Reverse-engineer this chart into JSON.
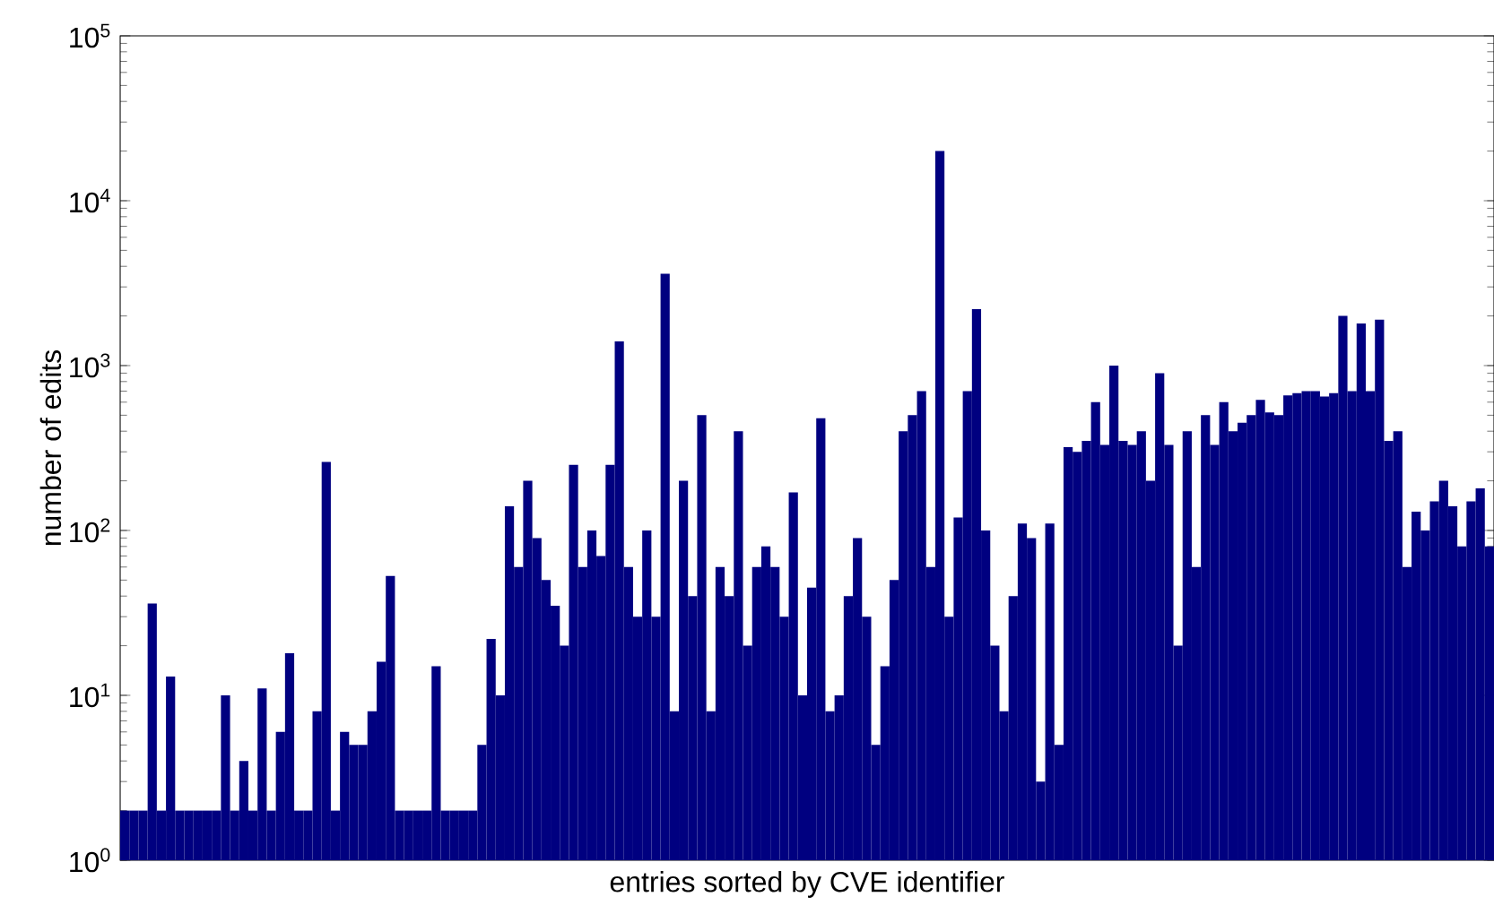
{
  "chart_data": {
    "type": "bar",
    "xlabel": "entries sorted by CVE identifier",
    "ylabel": "number of edits",
    "log": true,
    "grid": false,
    "tick_labels": "y",
    "color": "#000080",
    "ylim": [
      1,
      100000
    ],
    "yticks": [
      {
        "value": 1,
        "label": "10$^{0}$"
      },
      {
        "value": 10,
        "label": "10$^{1}$"
      },
      {
        "value": 100,
        "label": "10$^{2}$"
      },
      {
        "value": 1000,
        "label": "10$^{3}$"
      },
      {
        "value": 10000,
        "label": "10$^{4}$"
      },
      {
        "value": 100000,
        "label": "10$^{5}$"
      }
    ],
    "categories": [
      null,
      null,
      null,
      null,
      null,
      null,
      null,
      null,
      null,
      null,
      null,
      null,
      null,
      null,
      null,
      null,
      null,
      null,
      null,
      null,
      null,
      null,
      null,
      null,
      null,
      null,
      null,
      null,
      null,
      null,
      null,
      null,
      null,
      null,
      null,
      null,
      null,
      null,
      null,
      null,
      null,
      null,
      null,
      null,
      null,
      null,
      null,
      null,
      null,
      null,
      null,
      null,
      null,
      null,
      null,
      null,
      null,
      null,
      null,
      null,
      null,
      null,
      null,
      null,
      null,
      null,
      null,
      null,
      null,
      null,
      null,
      null,
      null,
      null,
      null,
      null,
      null,
      null,
      null,
      null,
      null,
      null,
      null,
      null,
      null,
      null,
      null,
      null,
      null,
      null,
      null,
      null,
      null,
      null,
      null,
      null,
      null,
      null,
      null,
      null,
      null,
      null,
      null,
      null,
      null,
      null,
      null,
      null,
      null,
      null,
      null,
      null,
      null,
      null,
      null,
      null,
      null,
      null,
      null,
      null,
      null,
      null,
      null,
      null,
      null,
      null,
      null,
      null,
      null,
      null,
      null,
      null,
      null,
      null,
      null,
      null,
      null,
      null,
      null,
      null,
      null,
      null,
      null,
      null,
      null,
      null,
      null,
      null,
      null,
      null
    ],
    "values": [
      2,
      2,
      2,
      36,
      2,
      13,
      2,
      2,
      2,
      2,
      2,
      10,
      2,
      4,
      2,
      11,
      2,
      6,
      18,
      2,
      2,
      8,
      260,
      2,
      6,
      5,
      5,
      8,
      16,
      53,
      2,
      2,
      2,
      2,
      15,
      2,
      2,
      2,
      2,
      5,
      22,
      10,
      140,
      60,
      200,
      90,
      50,
      35,
      20,
      250,
      60,
      100,
      70,
      250,
      1400,
      60,
      30,
      100,
      30,
      3600,
      8,
      200,
      40,
      500,
      8,
      60,
      40,
      400,
      20,
      60,
      80,
      60,
      30,
      170,
      10,
      45,
      480,
      8,
      10,
      40,
      90,
      30,
      5,
      15,
      50,
      400,
      500,
      700,
      60,
      20000,
      30,
      120,
      700,
      2200,
      100,
      20,
      8,
      40,
      110,
      90,
      3,
      110,
      5,
      320,
      300,
      350,
      600,
      330,
      1000,
      350,
      330,
      400,
      200,
      900,
      330,
      20,
      400,
      60,
      500,
      330,
      600,
      400,
      450,
      500,
      620,
      520,
      500,
      660,
      680,
      700,
      700,
      650,
      680,
      2000,
      700,
      1800,
      700,
      1900,
      350,
      400,
      60,
      130,
      100,
      150,
      200,
      140,
      80,
      150,
      180,
      80
    ]
  }
}
